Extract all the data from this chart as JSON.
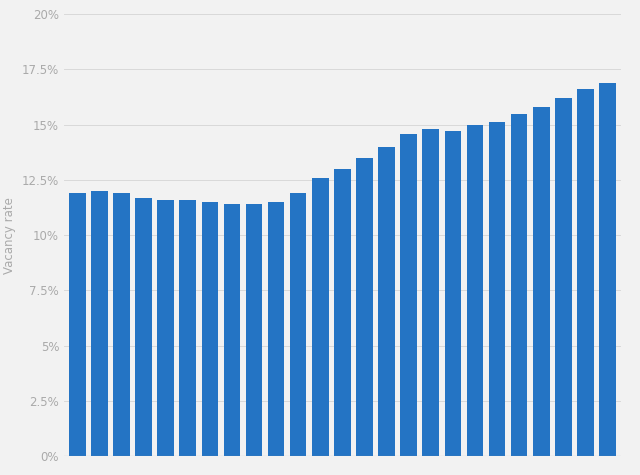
{
  "values": [
    11.9,
    12.0,
    11.9,
    11.7,
    11.6,
    11.6,
    11.5,
    11.4,
    11.4,
    11.5,
    11.9,
    12.6,
    13.0,
    13.5,
    14.0,
    14.6,
    14.8,
    14.7,
    15.0,
    15.1,
    15.5,
    15.8,
    16.2,
    16.6,
    16.9
  ],
  "bar_color": "#2474C4",
  "ylabel": "Vacancy rate",
  "ylim": [
    0,
    20
  ],
  "yticks": [
    0,
    2.5,
    5,
    7.5,
    10,
    12.5,
    15,
    17.5,
    20
  ],
  "ytick_labels": [
    "0%",
    "2.5%",
    "5%",
    "7.5%",
    "10%",
    "12.5%",
    "15%",
    "17.5%",
    "20%"
  ],
  "background_color": "#f2f2f2",
  "grid_color": "#d9d9d9",
  "bar_width": 0.75,
  "ylabel_fontsize": 8.5,
  "tick_fontsize": 8.5,
  "tick_color": "#aaaaaa",
  "figsize": [
    6.4,
    4.75
  ],
  "dpi": 100
}
